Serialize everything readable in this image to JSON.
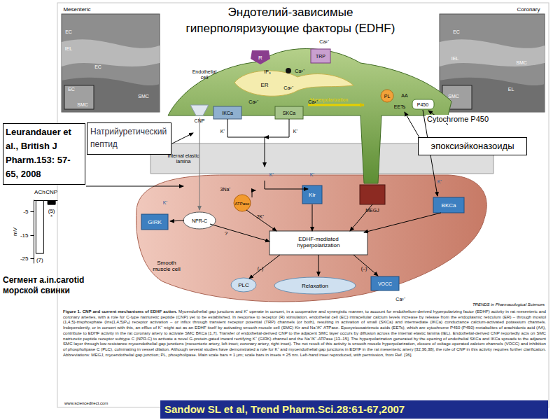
{
  "title": [
    "Эндотелий-зависимые",
    "гиперполяризующие факторы (EDHF)"
  ],
  "insets": {
    "left": {
      "title": "Mesenteric",
      "labels": [
        "EC",
        "IEL",
        "EC",
        "EC",
        "SMC",
        "SMC"
      ]
    },
    "right": {
      "title": "Coronary",
      "labels": [
        "EC",
        "IEL",
        "SMC",
        "EL",
        "SMC"
      ]
    }
  },
  "diagram": {
    "receptor": "R",
    "trp": "TRP",
    "ca_trp": "Ca²⁺",
    "ip3": "IP₃",
    "ca_store": "Ca²⁺",
    "er": "ER",
    "ca_er": "Ca²⁺",
    "endothelial_cell": [
      "Endothelial",
      "cell"
    ],
    "hyperpolarization": "Hyperpolarization",
    "ca_ik": "Ca²⁺",
    "ca_sk": "Ca²⁺",
    "ikca": "IKCa",
    "skca": "SKCa",
    "pl": "PL",
    "aa": "AA",
    "eets": "EETs",
    "p450": "P450",
    "cnp": "CNP",
    "k_ik": "K⁺",
    "k_sk": "K⁺",
    "iel": [
      "Internal elastic",
      "lamina"
    ],
    "k_efflux": "K⁺",
    "na": "3Na⁺",
    "atpase": "ATPase",
    "k_2": "2K⁺",
    "kir": "Kir",
    "k_kir": "K⁺",
    "megj": "MEGJ",
    "k_bk": "K⁺",
    "bkca": "BKCa",
    "girk": "GIRK",
    "k_girk": "K⁺",
    "nprc": "NPR-C",
    "question": "?",
    "edhf_box": [
      "EDHF-mediated",
      "hyperpolarization"
    ],
    "inhibit_plc": "(–)",
    "inhibit_vocc": "(–)",
    "plc": "PLC",
    "relaxation": "Relaxation",
    "vocc": "VOCC",
    "ca_vocc": "Ca²⁺",
    "smc": [
      "Smooth",
      "muscle cell"
    ]
  },
  "caption": {
    "heading": "Figure 1. CNP and current mechanisms of EDHF action.",
    "text": "Myoendothelial gap junctions and K⁺ operate in concert, in a cooperative and synergistic manner, to account for endothelium-derived hyperpolarizing factor (EDHF) activity in rat mesenteric and coronary arteries, with a role for C-type natriuretic peptide (CNP) yet to be established. In response to receptor (R) stimulation, endothelial cell (EC) intracellular calcium levels increase by release from the endoplasmic reticulum (ER) – through inositol (1,4,5)-trisphosphate (Ins(1,4,5)P₃) receptor activation – or influx through transient receptor potential (TRP) channels (or both), resulting in activation of small (SKCa) and intermediate (IKCa) conductance calcium-activated potassium channels. Independently, or in concert with this, an efflux of K⁺ might act as an EDHF itself by activating smooth muscle cell (SMC) Kir and Na⁺/K⁺ ATPase. Epoxyeicosatrienoic acids (EETs), which are cytochrome P450 (P450) metabolites of arachidonic acid (AA), contribute to EDHF activity in the rat coronary artery to activate SMC BKCa [1,7]. Transfer of endothelial-derived CNP to the adjacent SMC layer occurs by diffusion across the internal elastic lamina (IEL). Endothelial-derived CNP reportedly acts on SMC natriuretic peptide receptor subtype C (NPR-C) to activate a novel G-protein-gated inward rectifying K⁺ (GIRK) channel and the Na⁺/K⁺-ATPase [13–15]. The hyperpolarization generated by the opening of endothelial SKCa and IKCa spreads to the adjacent SMC layer through low-resistance myoendothelial gap junctions (mesenteric artery, left inset; coronary artery, right inset). The net result of this activity is smooth muscle hyperpolarization, closure of voltage-operated calcium channels (VOCC) and inhibition of phospholipase C (PLC), culminating in vessel dilation. Although several studies have demonstrated a role for K⁺ and myoendothelial gap junctions in EDHF in the rat mesenteric artery [32,36,38], the role of CNP in this activity requires further clarification. Abbreviations: MEGJ, myoendothelial gap junction; PL, phospholipase. Main scale bars = 1 µm; scale bars in insets = 25 nm. Left-hand inset reproduced, with permission, from Ref. [36]."
  },
  "journal_mark": "TRENDS in Pharmacological Sciences",
  "source_url": "www.sciencedirect.com",
  "notes": {
    "reference_1": "Leurandauer et al., British J Pharm.153: 57-65, 2008",
    "natriuretic": "Натрийуретический пептид",
    "cytochrome": "Cytochrome P450",
    "eets": "эпоксиэйконазоиды",
    "segment": "Сегмент a.in.carotid морской свинки",
    "reference_2": "Sandow SL et al, Trend Pharm.Sci.28:61-67,2007"
  },
  "chart_data": {
    "type": "bar",
    "categories": [
      "ACh",
      "CNP"
    ],
    "values": [
      -23,
      -2
    ],
    "colors": [
      "#ffffff",
      "#000000"
    ],
    "y_label": "mV",
    "ylim": [
      -27,
      0
    ],
    "yticks": [
      -5,
      -15,
      -25
    ],
    "sample_sizes": [
      "(7)",
      "(5)"
    ],
    "significance": [
      null,
      "*"
    ],
    "grid": false
  }
}
